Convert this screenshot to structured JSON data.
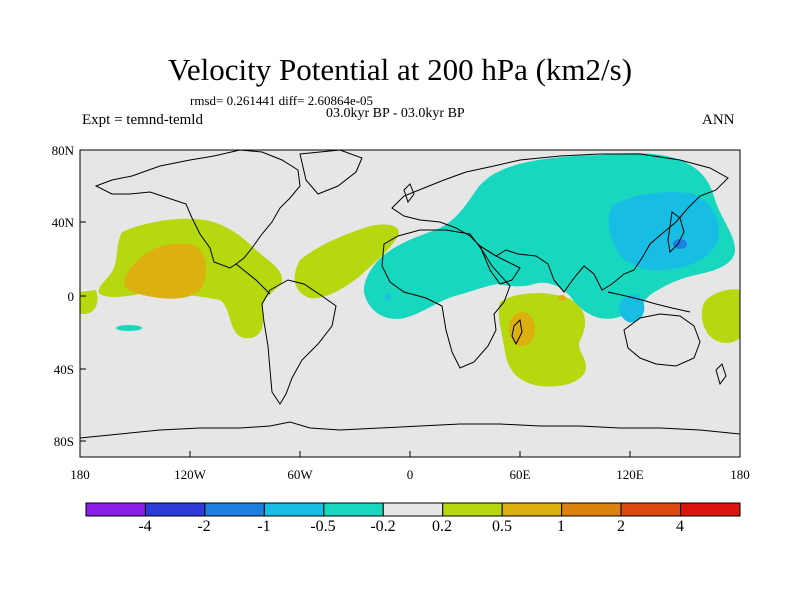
{
  "title": "Velocity Potential at 200 hPa (km2/s)",
  "stats_line": "rmsd= 0.261441 diff= 2.60864e-05",
  "period_line": "03.0kyr BP - 03.0kyr BP",
  "expt_label": "Expt = temnd-temld",
  "season": "ANN",
  "lat_labels": [
    "80N",
    "40N",
    "0",
    "40S",
    "80S"
  ],
  "lon_labels": [
    "180",
    "120W",
    "60W",
    "0",
    "60E",
    "120E",
    "180"
  ],
  "colorbar": {
    "labels": [
      "-4",
      "-2",
      "-1",
      "-0.5",
      "-0.2",
      "0.2",
      "0.5",
      "1",
      "2",
      "4"
    ],
    "colors": [
      "#8a1ee6",
      "#2e3ad8",
      "#1d7fe0",
      "#17bde3",
      "#17d8be",
      "#e6e6e6",
      "#b6d80e",
      "#dcb00e",
      "#dc800e",
      "#dc4a0e",
      "#dc140e"
    ]
  },
  "colors": {
    "background": "#e6e6e6",
    "positive_weak": "#b6d80e",
    "positive_mid": "#dcb00e",
    "negative_weak": "#17d8be",
    "negative_mid": "#17bde3",
    "negative_strong": "#1d7fe0"
  }
}
